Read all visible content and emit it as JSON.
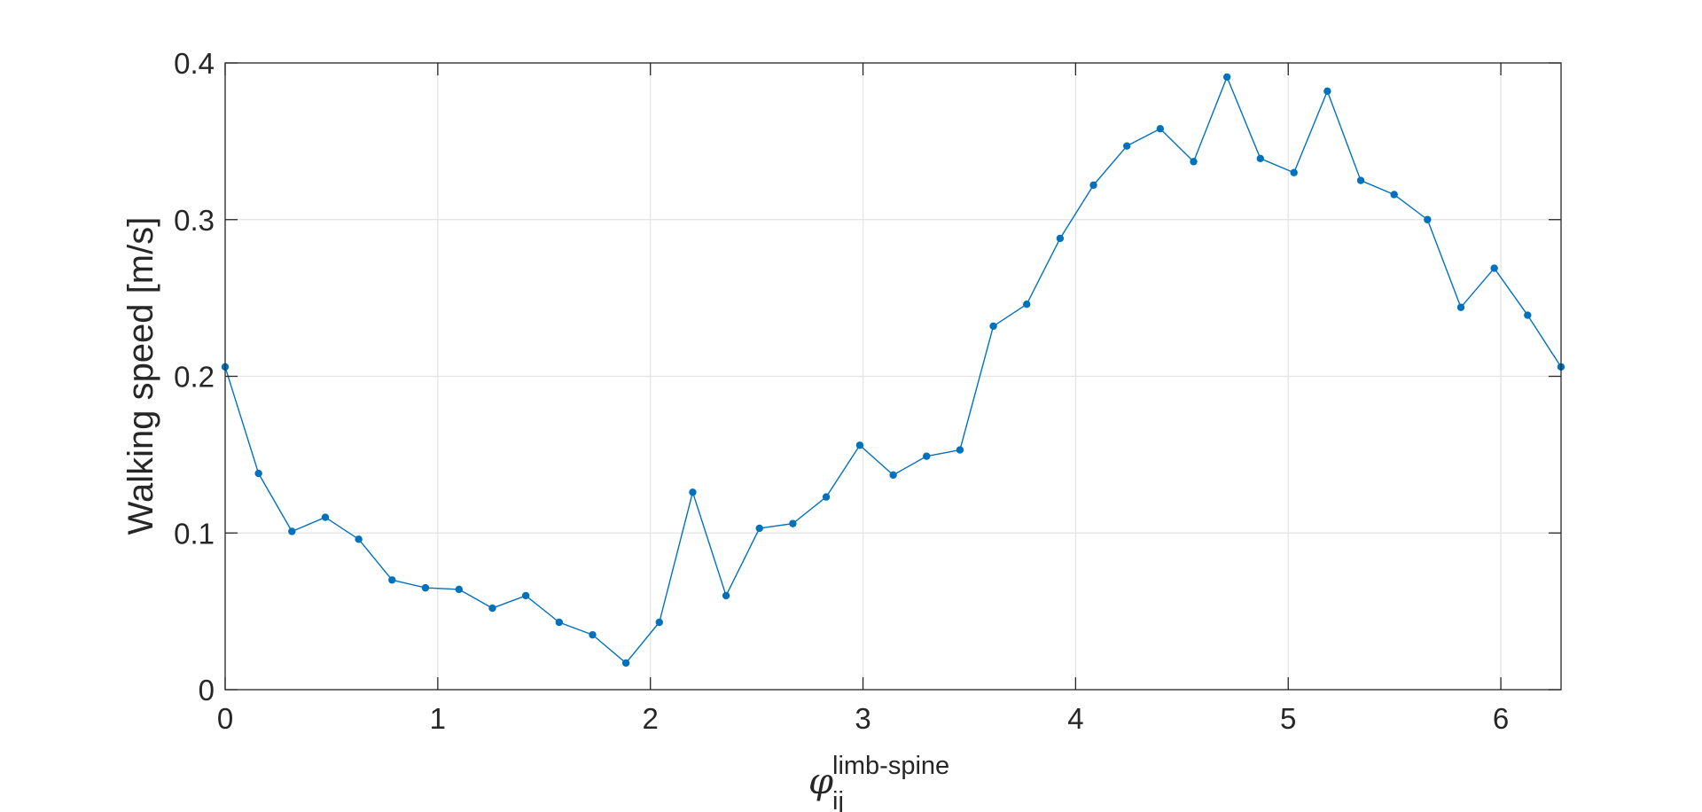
{
  "chart_data": {
    "type": "line",
    "title": "",
    "xlabel": {
      "symbol": "φ",
      "superscript": "limb-spine",
      "subscript": "ij"
    },
    "ylabel": "Walking speed [m/s]",
    "xlim": [
      0,
      6.2832
    ],
    "ylim": [
      0,
      0.4
    ],
    "xticks": [
      "0",
      "1",
      "2",
      "3",
      "4",
      "5",
      "6"
    ],
    "yticks": [
      "0",
      "0.1",
      "0.2",
      "0.3",
      "0.4"
    ],
    "grid": true,
    "color": "#0072BD",
    "series": [
      {
        "x": [
          0.0,
          0.157,
          0.314,
          0.471,
          0.628,
          0.785,
          0.942,
          1.1,
          1.257,
          1.414,
          1.571,
          1.728,
          1.885,
          2.042,
          2.199,
          2.356,
          2.513,
          2.67,
          2.827,
          2.985,
          3.142,
          3.299,
          3.456,
          3.613,
          3.77,
          3.927,
          4.084,
          4.241,
          4.398,
          4.555,
          4.712,
          4.869,
          5.027,
          5.184,
          5.341,
          5.498,
          5.655,
          5.812,
          5.969,
          6.126,
          6.283
        ],
        "y": [
          0.206,
          0.138,
          0.101,
          0.11,
          0.096,
          0.07,
          0.065,
          0.064,
          0.052,
          0.06,
          0.043,
          0.035,
          0.017,
          0.043,
          0.126,
          0.06,
          0.103,
          0.106,
          0.123,
          0.156,
          0.137,
          0.149,
          0.153,
          0.232,
          0.246,
          0.288,
          0.322,
          0.347,
          0.358,
          0.337,
          0.391,
          0.339,
          0.33,
          0.382,
          0.325,
          0.316,
          0.3,
          0.244,
          0.269,
          0.239,
          0.206
        ]
      }
    ]
  }
}
